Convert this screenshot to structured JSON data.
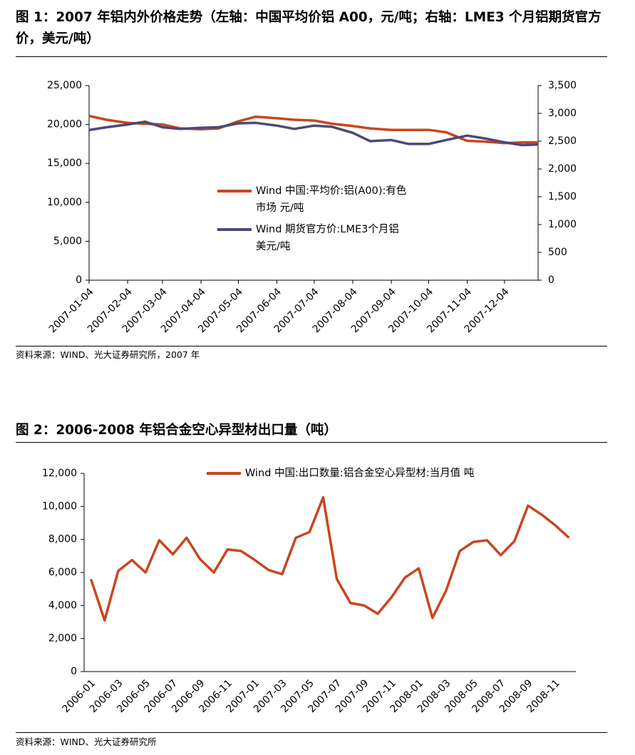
{
  "chart_data": [
    {
      "type": "line",
      "title": "图 1：2007 年铝内外价格走势（左轴：中国平均价铝 A00，元/吨；右轴：LME3 个月铝期货官方价，美元/吨）",
      "source": "资料来源：WIND、光大证券研究所，2007 年",
      "x": [
        "2007-01-04",
        "2007-01-18",
        "2007-02-04",
        "2007-02-18",
        "2007-03-04",
        "2007-03-18",
        "2007-04-04",
        "2007-04-18",
        "2007-05-04",
        "2007-05-18",
        "2007-06-04",
        "2007-06-18",
        "2007-07-04",
        "2007-07-18",
        "2007-08-04",
        "2007-08-18",
        "2007-09-04",
        "2007-09-18",
        "2007-10-04",
        "2007-10-18",
        "2007-11-04",
        "2007-11-18",
        "2007-12-04",
        "2007-12-18",
        "2007-12-31"
      ],
      "xlim": [
        "2007-01-04",
        "2007-12-31"
      ],
      "xticks": [
        "2007-01-04",
        "2007-02-04",
        "2007-03-04",
        "2007-04-04",
        "2007-05-04",
        "2007-06-04",
        "2007-07-04",
        "2007-08-04",
        "2007-09-04",
        "2007-10-04",
        "2007-11-04",
        "2007-12-04"
      ],
      "ylim": [
        0,
        25000
      ],
      "yticks": [
        0,
        {
          "value": 5000,
          "label": "5,000"
        },
        {
          "value": 10000,
          "label": "10,000"
        },
        {
          "value": 15000,
          "label": "15,000"
        },
        {
          "value": 20000,
          "label": "20,000"
        },
        {
          "value": 25000,
          "label": "25,000"
        }
      ],
      "y2lim": [
        0,
        3500
      ],
      "y2ticks": [
        0,
        500,
        {
          "value": 1000,
          "label": "1,000"
        },
        {
          "value": 1500,
          "label": "1,500"
        },
        {
          "value": 2000,
          "label": "2,000"
        },
        {
          "value": 2500,
          "label": "2,500"
        },
        {
          "value": 3000,
          "label": "3,000"
        },
        {
          "value": 3500,
          "label": "3,500"
        }
      ],
      "legend": "center",
      "series": [
        {
          "name": "Wind 中国:平均价:铝(A00):有色市场 元/吨",
          "color": "#c8461e",
          "values": [
            21100,
            20600,
            20200,
            20100,
            20000,
            19500,
            19400,
            19500,
            20400,
            21000,
            20800,
            20600,
            20500,
            20100,
            19800,
            19500,
            19300,
            19300,
            19300,
            19000,
            17900,
            17800,
            17600,
            17700,
            17700
          ]
        },
        {
          "name": "Wind 期货官方价:LME3个月铝 美元/吨",
          "color": "#4a4a78",
          "axis": "y2",
          "values": [
            2700,
            2750,
            2800,
            2850,
            2750,
            2720,
            2740,
            2750,
            2820,
            2830,
            2780,
            2720,
            2780,
            2760,
            2650,
            2500,
            2520,
            2450,
            2450,
            2520,
            2600,
            2550,
            2480,
            2430,
            2440
          ]
        }
      ]
    },
    {
      "type": "line",
      "title": "图 2：2006-2008 年铝合金空心异型材出口量（吨）",
      "source": "资料来源：WIND、光大证券研究所",
      "categories": [
        "2006-01",
        null,
        "2006-03",
        null,
        "2006-05",
        null,
        "2006-07",
        null,
        "2006-09",
        null,
        "2006-11",
        null,
        "2007-01",
        null,
        "2007-03",
        null,
        "2007-05",
        null,
        "2007-07",
        null,
        "2007-09",
        null,
        "2007-11",
        null,
        "2008-01",
        null,
        "2008-03",
        null,
        "2008-05",
        null,
        "2008-07",
        null,
        "2008-09",
        null,
        "2008-11",
        null
      ],
      "ylim": [
        0,
        12000
      ],
      "yticks": [
        0,
        {
          "value": 2000,
          "label": "2,000"
        },
        {
          "value": 4000,
          "label": "4,000"
        },
        {
          "value": 6000,
          "label": "6,000"
        },
        {
          "value": 8000,
          "label": "8,000"
        },
        {
          "value": 10000,
          "label": "10,000"
        },
        {
          "value": 12000,
          "label": "12,000"
        }
      ],
      "legend": "upper center",
      "series": [
        {
          "name": "Wind 中国:出口数量:铝合金空心异型材:当月值 吨",
          "color": "#c8461e",
          "values": [
            5600,
            3100,
            6100,
            6750,
            6000,
            7950,
            7100,
            8100,
            6800,
            6000,
            7400,
            7300,
            6750,
            6150,
            5900,
            8100,
            8450,
            10550,
            5600,
            4150,
            4000,
            3500,
            4500,
            5700,
            6250,
            3250,
            4900,
            7300,
            7850,
            7950,
            7050,
            7900,
            10050,
            9500,
            8850,
            8100
          ]
        }
      ]
    }
  ]
}
